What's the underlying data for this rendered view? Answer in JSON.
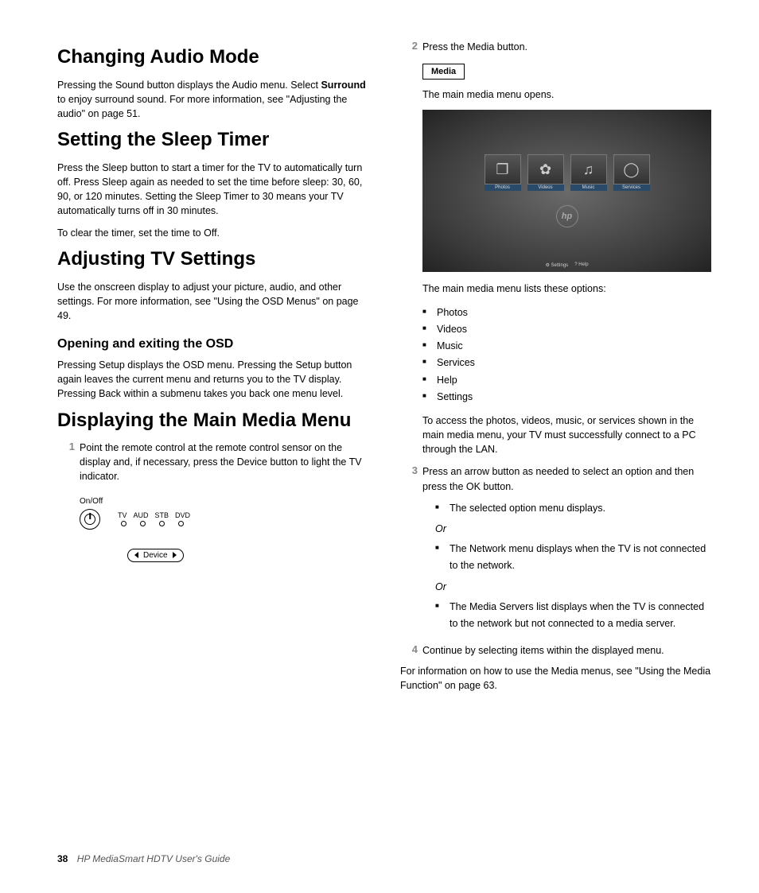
{
  "left": {
    "h1_audio": "Changing Audio Mode",
    "p_audio_a": "Pressing the Sound button displays the Audio menu. Select ",
    "p_audio_bold": "Surround",
    "p_audio_b": " to enjoy surround sound. For more information, see \"Adjusting the audio\" on page 51.",
    "h1_sleep": "Setting the Sleep Timer",
    "p_sleep1": "Press the Sleep button to start a timer for the TV to automatically turn off. Press Sleep again as needed to set the time before sleep: 30, 60, 90, or 120 minutes. Setting the Sleep Timer to 30 means your TV automatically turns off in 30 minutes.",
    "p_sleep2": "To clear the timer, set the time to Off.",
    "h1_adjust": "Adjusting TV Settings",
    "p_adjust": "Use the onscreen display to adjust your picture, audio, and other settings. For more information, see \"Using the OSD Menus\" on page 49.",
    "h2_osd": "Opening and exiting the OSD",
    "p_osd": "Pressing Setup displays the OSD menu. Pressing the Setup button again leaves the current menu and returns you to the TV display. Pressing Back within a submenu takes you back one menu level.",
    "h1_media": "Displaying the Main Media Menu",
    "step1_num": "1",
    "step1_text": "Point the remote control at the remote control sensor on the display and, if necessary, press the Device button to light the TV indicator.",
    "remote": {
      "onoff": "On/Off",
      "labels": [
        "TV",
        "AUD",
        "STB",
        "DVD"
      ],
      "device": "Device"
    }
  },
  "right": {
    "step2_num": "2",
    "step2_text": "Press the Media button.",
    "media_btn": "Media",
    "p_open": "The main media menu opens.",
    "screenshot": {
      "tiles": [
        {
          "glyph": "❐",
          "label": "Photos"
        },
        {
          "glyph": "✿",
          "label": "Videos"
        },
        {
          "glyph": "♫",
          "label": "Music"
        },
        {
          "glyph": "◯",
          "label": "Services"
        }
      ],
      "logo": "hp",
      "footer": [
        "⚙ Settings",
        "? Help"
      ]
    },
    "p_lists": "The main media menu lists these options:",
    "options": [
      "Photos",
      "Videos",
      "Music",
      "Services",
      "Help",
      "Settings"
    ],
    "p_access": "To access the photos, videos, music, or services shown in the main media menu, your TV must successfully connect to a PC through the LAN.",
    "step3_num": "3",
    "step3_text": "Press an arrow button as needed to select an option and then press the OK button.",
    "s3_b1": "The selected option menu displays.",
    "or": "Or",
    "s3_b2": "The Network menu displays when the TV is not connected to the network.",
    "s3_b3": "The Media Servers list displays when the TV is connected to the network but not connected to a media server.",
    "step4_num": "4",
    "step4_text": "Continue by selecting items within the displayed menu.",
    "p_info": "For information on how to use the Media menus, see \"Using the Media Function\" on page 63."
  },
  "footer": {
    "page": "38",
    "title": "HP MediaSmart HDTV User's Guide"
  }
}
